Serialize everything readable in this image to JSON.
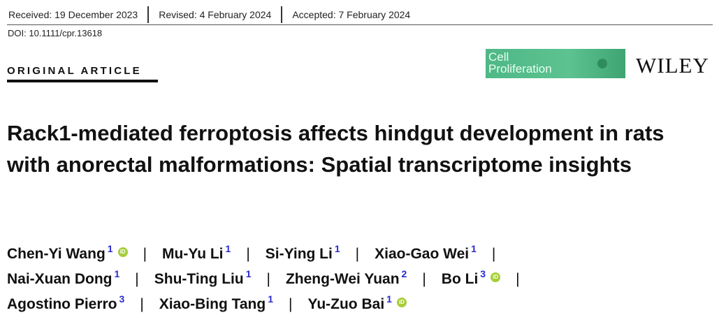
{
  "dates": [
    "Received: 19 December 2023",
    "Revised: 4 February 2024",
    "Accepted: 7 February 2024"
  ],
  "doi": "DOI: 10.1111/cpr.13618",
  "article_type": "ORIGINAL ARTICLE",
  "journal_logo": {
    "line1": "Cell",
    "line2": "Proliferation",
    "color": "#4fb886"
  },
  "publisher": "WILEY",
  "title": "Rack1-mediated ferroptosis affects hindgut development in rats with anorectal malformations: Spatial transcriptome insights",
  "orcid_color": "#a6ce39",
  "author_rows": [
    [
      {
        "name": "Chen-Yi Wang",
        "aff": "1",
        "orcid": true
      },
      {
        "name": "Mu-Yu Li",
        "aff": "1"
      },
      {
        "name": "Si-Ying Li",
        "aff": "1"
      },
      {
        "name": "Xiao-Gao Wei",
        "aff": "1"
      }
    ],
    [
      {
        "name": "Nai-Xuan Dong",
        "aff": "1"
      },
      {
        "name": "Shu-Ting Liu",
        "aff": "1"
      },
      {
        "name": "Zheng-Wei Yuan",
        "aff": "2"
      },
      {
        "name": "Bo Li",
        "aff": "3",
        "orcid": true
      }
    ],
    [
      {
        "name": "Agostino Pierro",
        "aff": "3"
      },
      {
        "name": "Xiao-Bing Tang",
        "aff": "1"
      },
      {
        "name": "Yu-Zuo Bai",
        "aff": "1",
        "orcid": true
      }
    ]
  ]
}
